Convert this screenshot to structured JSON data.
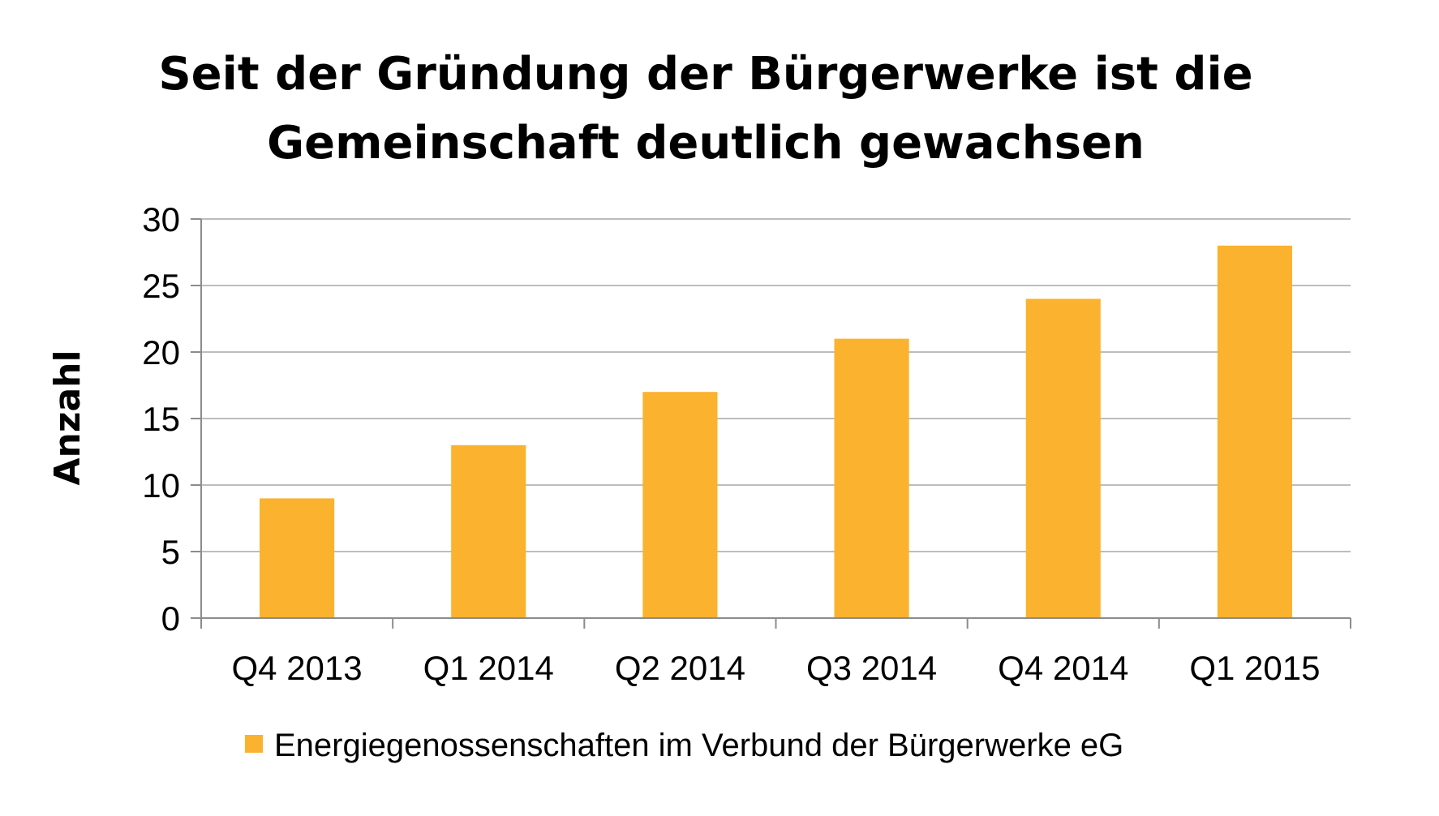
{
  "chart_data": {
    "type": "bar",
    "title": [
      "Seit der Gründung der Bürgerwerke ist die",
      "Gemeinschaft deutlich gewachsen"
    ],
    "xlabel": "",
    "ylabel": "Anzahl",
    "categories": [
      "Q4 2013",
      "Q1 2014",
      "Q2 2014",
      "Q3 2014",
      "Q4 2014",
      "Q1 2015"
    ],
    "series": [
      {
        "name": "Energiegenossenschaften im Verbund der Bürgerwerke eG",
        "values": [
          9,
          13,
          17,
          21,
          24,
          28
        ],
        "color": "#FBB22E"
      }
    ],
    "ylim": [
      0,
      30
    ],
    "yticks": [
      "0",
      "5",
      "10",
      "15",
      "20",
      "25",
      "30"
    ],
    "grid": true,
    "legend_position": "bottom"
  }
}
